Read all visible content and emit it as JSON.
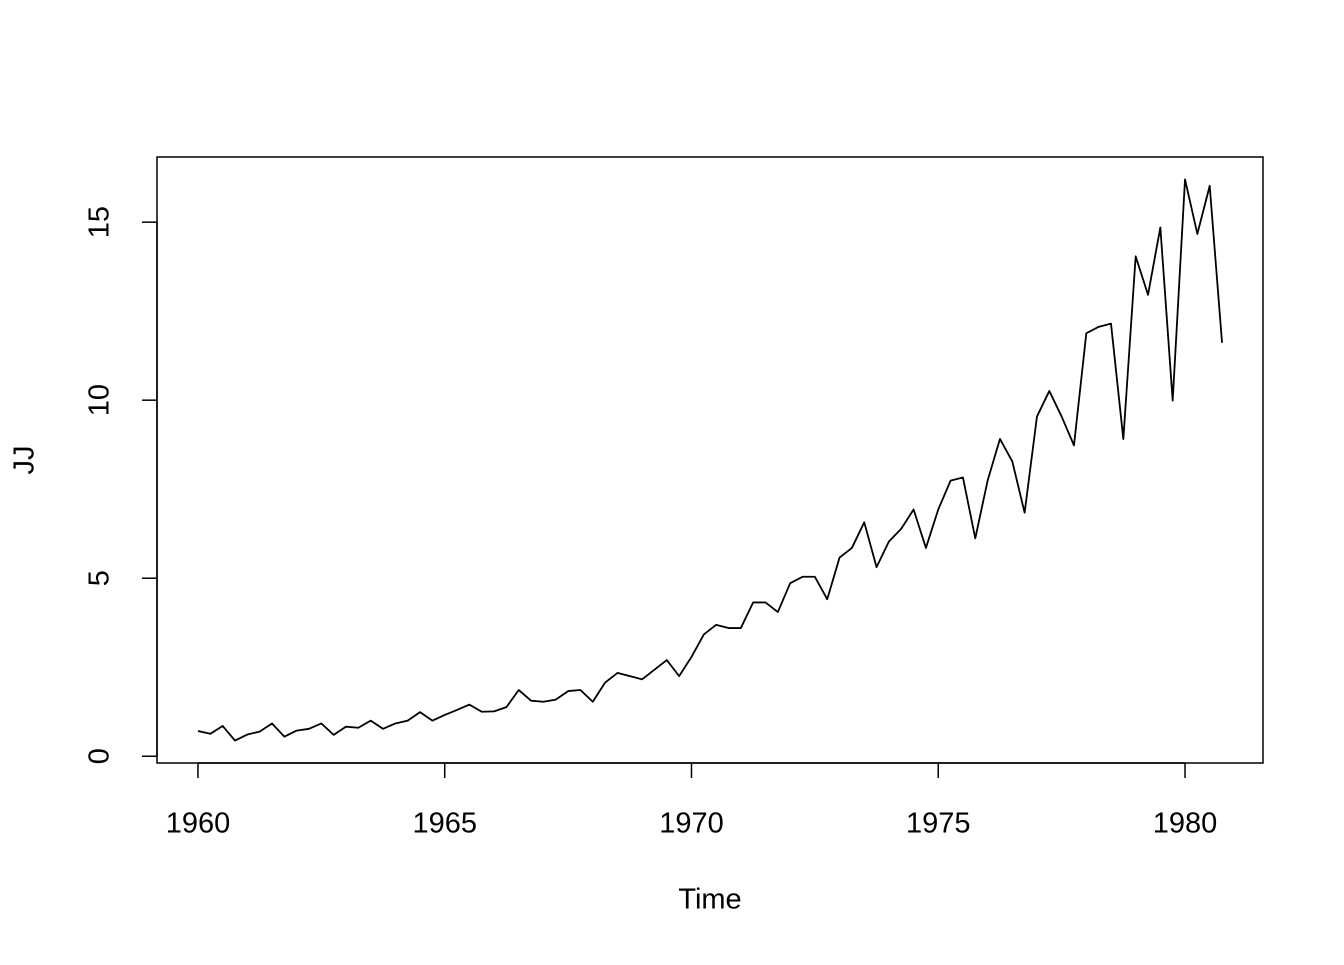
{
  "chart_data": {
    "type": "line",
    "x_label": "Time",
    "y_label": "JJ",
    "x": [
      1960,
      1960.25,
      1960.5,
      1960.75,
      1961,
      1961.25,
      1961.5,
      1961.75,
      1962,
      1962.25,
      1962.5,
      1962.75,
      1963,
      1963.25,
      1963.5,
      1963.75,
      1964,
      1964.25,
      1964.5,
      1964.75,
      1965,
      1965.25,
      1965.5,
      1965.75,
      1966,
      1966.25,
      1966.5,
      1966.75,
      1967,
      1967.25,
      1967.5,
      1967.75,
      1968,
      1968.25,
      1968.5,
      1968.75,
      1969,
      1969.25,
      1969.5,
      1969.75,
      1970,
      1970.25,
      1970.5,
      1970.75,
      1971,
      1971.25,
      1971.5,
      1971.75,
      1972,
      1972.25,
      1972.5,
      1972.75,
      1973,
      1973.25,
      1973.5,
      1973.75,
      1974,
      1974.25,
      1974.5,
      1974.75,
      1975,
      1975.25,
      1975.5,
      1975.75,
      1976,
      1976.25,
      1976.5,
      1976.75,
      1977,
      1977.25,
      1977.5,
      1977.75,
      1978,
      1978.25,
      1978.5,
      1978.75,
      1979,
      1979.25,
      1979.5,
      1979.75,
      1980,
      1980.25,
      1980.5,
      1980.75
    ],
    "series": [
      {
        "color": "#000000",
        "values": [
          0.71,
          0.63,
          0.85,
          0.44,
          0.61,
          0.69,
          0.92,
          0.55,
          0.72,
          0.77,
          0.92,
          0.6,
          0.83,
          0.8,
          1.0,
          0.77,
          0.92,
          1.0,
          1.24,
          1.0,
          1.16,
          1.3,
          1.45,
          1.25,
          1.26,
          1.38,
          1.86,
          1.56,
          1.53,
          1.59,
          1.83,
          1.86,
          1.53,
          2.07,
          2.34,
          2.25,
          2.16,
          2.43,
          2.7,
          2.25,
          2.79,
          3.42,
          3.69,
          3.6,
          3.6,
          4.32,
          4.32,
          4.05,
          4.86,
          5.04,
          5.04,
          4.41,
          5.58,
          5.85,
          6.57,
          5.31,
          6.03,
          6.39,
          6.93,
          5.85,
          6.93,
          7.74,
          7.83,
          6.12,
          7.74,
          8.91,
          8.28,
          6.84,
          9.54,
          10.26,
          9.54,
          8.73,
          11.88,
          12.06,
          12.15,
          8.91,
          14.04,
          12.96,
          14.85,
          9.99,
          16.2,
          14.67,
          16.02,
          11.61
        ]
      }
    ],
    "xlim": [
      1959.17,
      1981.58
    ],
    "xticks": [
      1960,
      1965,
      1970,
      1975,
      1980
    ],
    "ylim": [
      -0.19,
      16.83
    ],
    "yticks": [
      0,
      5,
      10,
      15
    ]
  }
}
